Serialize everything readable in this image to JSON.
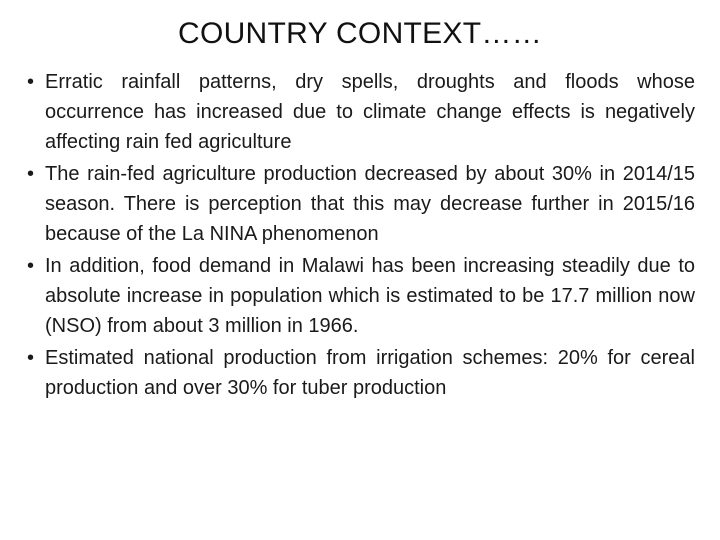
{
  "slide": {
    "title": "COUNTRY CONTEXT……",
    "bullet_glyph": "•",
    "bullets": [
      "Erratic rainfall patterns, dry spells, droughts and floods whose occurrence has increased due to climate change effects is negatively affecting rain fed agriculture",
      "The rain-fed agriculture production decreased by about 30% in 2014/15 season. There is perception that this may decrease further in 2015/16 because of the La NINA phenomenon",
      "In addition, food demand in Malawi has been increasing steadily due to absolute increase in population which is estimated to be 17.7 million now (NSO) from about 3 million in 1966.",
      "Estimated national production from irrigation schemes:  20% for cereal production and over 30% for tuber production"
    ]
  }
}
